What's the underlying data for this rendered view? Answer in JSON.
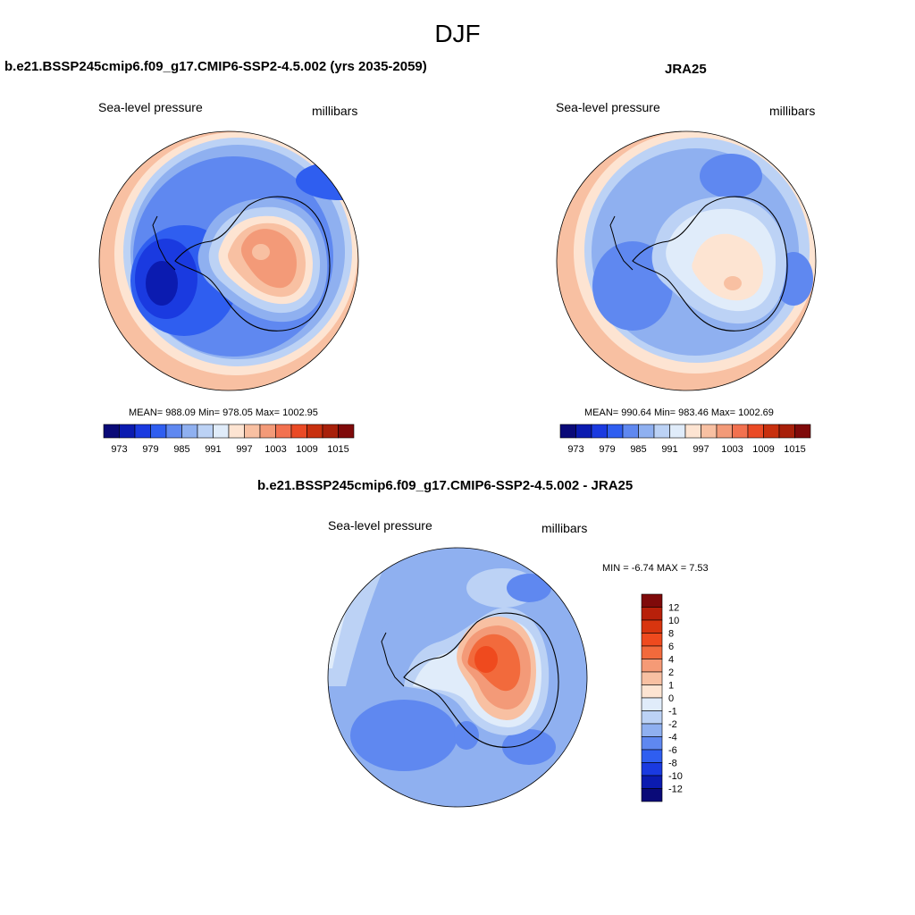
{
  "title": "DJF",
  "panels": [
    {
      "title": "b.e21.BSSP245cmip6.f09_g17.CMIP6-SSP2-4.5.002 (yrs 2035-2059)",
      "variable": "Sea-level pressure",
      "units": "millibars",
      "stats": "MEAN= 988.09  Min= 978.05  Max= 1002.95"
    },
    {
      "title": "JRA25",
      "variable": "Sea-level pressure",
      "units": "millibars",
      "stats": "MEAN= 990.64  Min= 983.46  Max= 1002.69"
    },
    {
      "title": "b.e21.BSSP245cmip6.f09_g17.CMIP6-SSP2-4.5.002 - JRA25",
      "variable": "Sea-level pressure",
      "units": "millibars",
      "stats": "MIN =  -6.74 MAX =   7.53"
    }
  ],
  "colorbar_abs": {
    "labels": [
      "973",
      "979",
      "985",
      "991",
      "997",
      "1003",
      "1009",
      "1015"
    ],
    "colors": [
      "#0a0a78",
      "#0b1bb0",
      "#1a3ae0",
      "#2f5ef0",
      "#5f88f0",
      "#8fb0f0",
      "#bcd2f5",
      "#e0ecfa",
      "#fde4d2",
      "#f8c0a2",
      "#f39a78",
      "#f2714f",
      "#ea4a25",
      "#c8300e",
      "#a8200a",
      "#7f0a0a"
    ]
  },
  "colorbar_diff": {
    "labels": [
      "12",
      "10",
      "8",
      "6",
      "4",
      "2",
      "1",
      "0",
      "-1",
      "-2",
      "-4",
      "-6",
      "-8",
      "-10",
      "-12"
    ],
    "colors": [
      "#7f0a0a",
      "#b8200a",
      "#d8350f",
      "#ef4a1e",
      "#f26a3c",
      "#f59a76",
      "#f8c0a2",
      "#fde4d2",
      "#e0ecfa",
      "#bcd2f5",
      "#8fb0f0",
      "#5f88f0",
      "#2f5ef0",
      "#1a3ae0",
      "#0b1bb0",
      "#0a0a78"
    ]
  }
}
